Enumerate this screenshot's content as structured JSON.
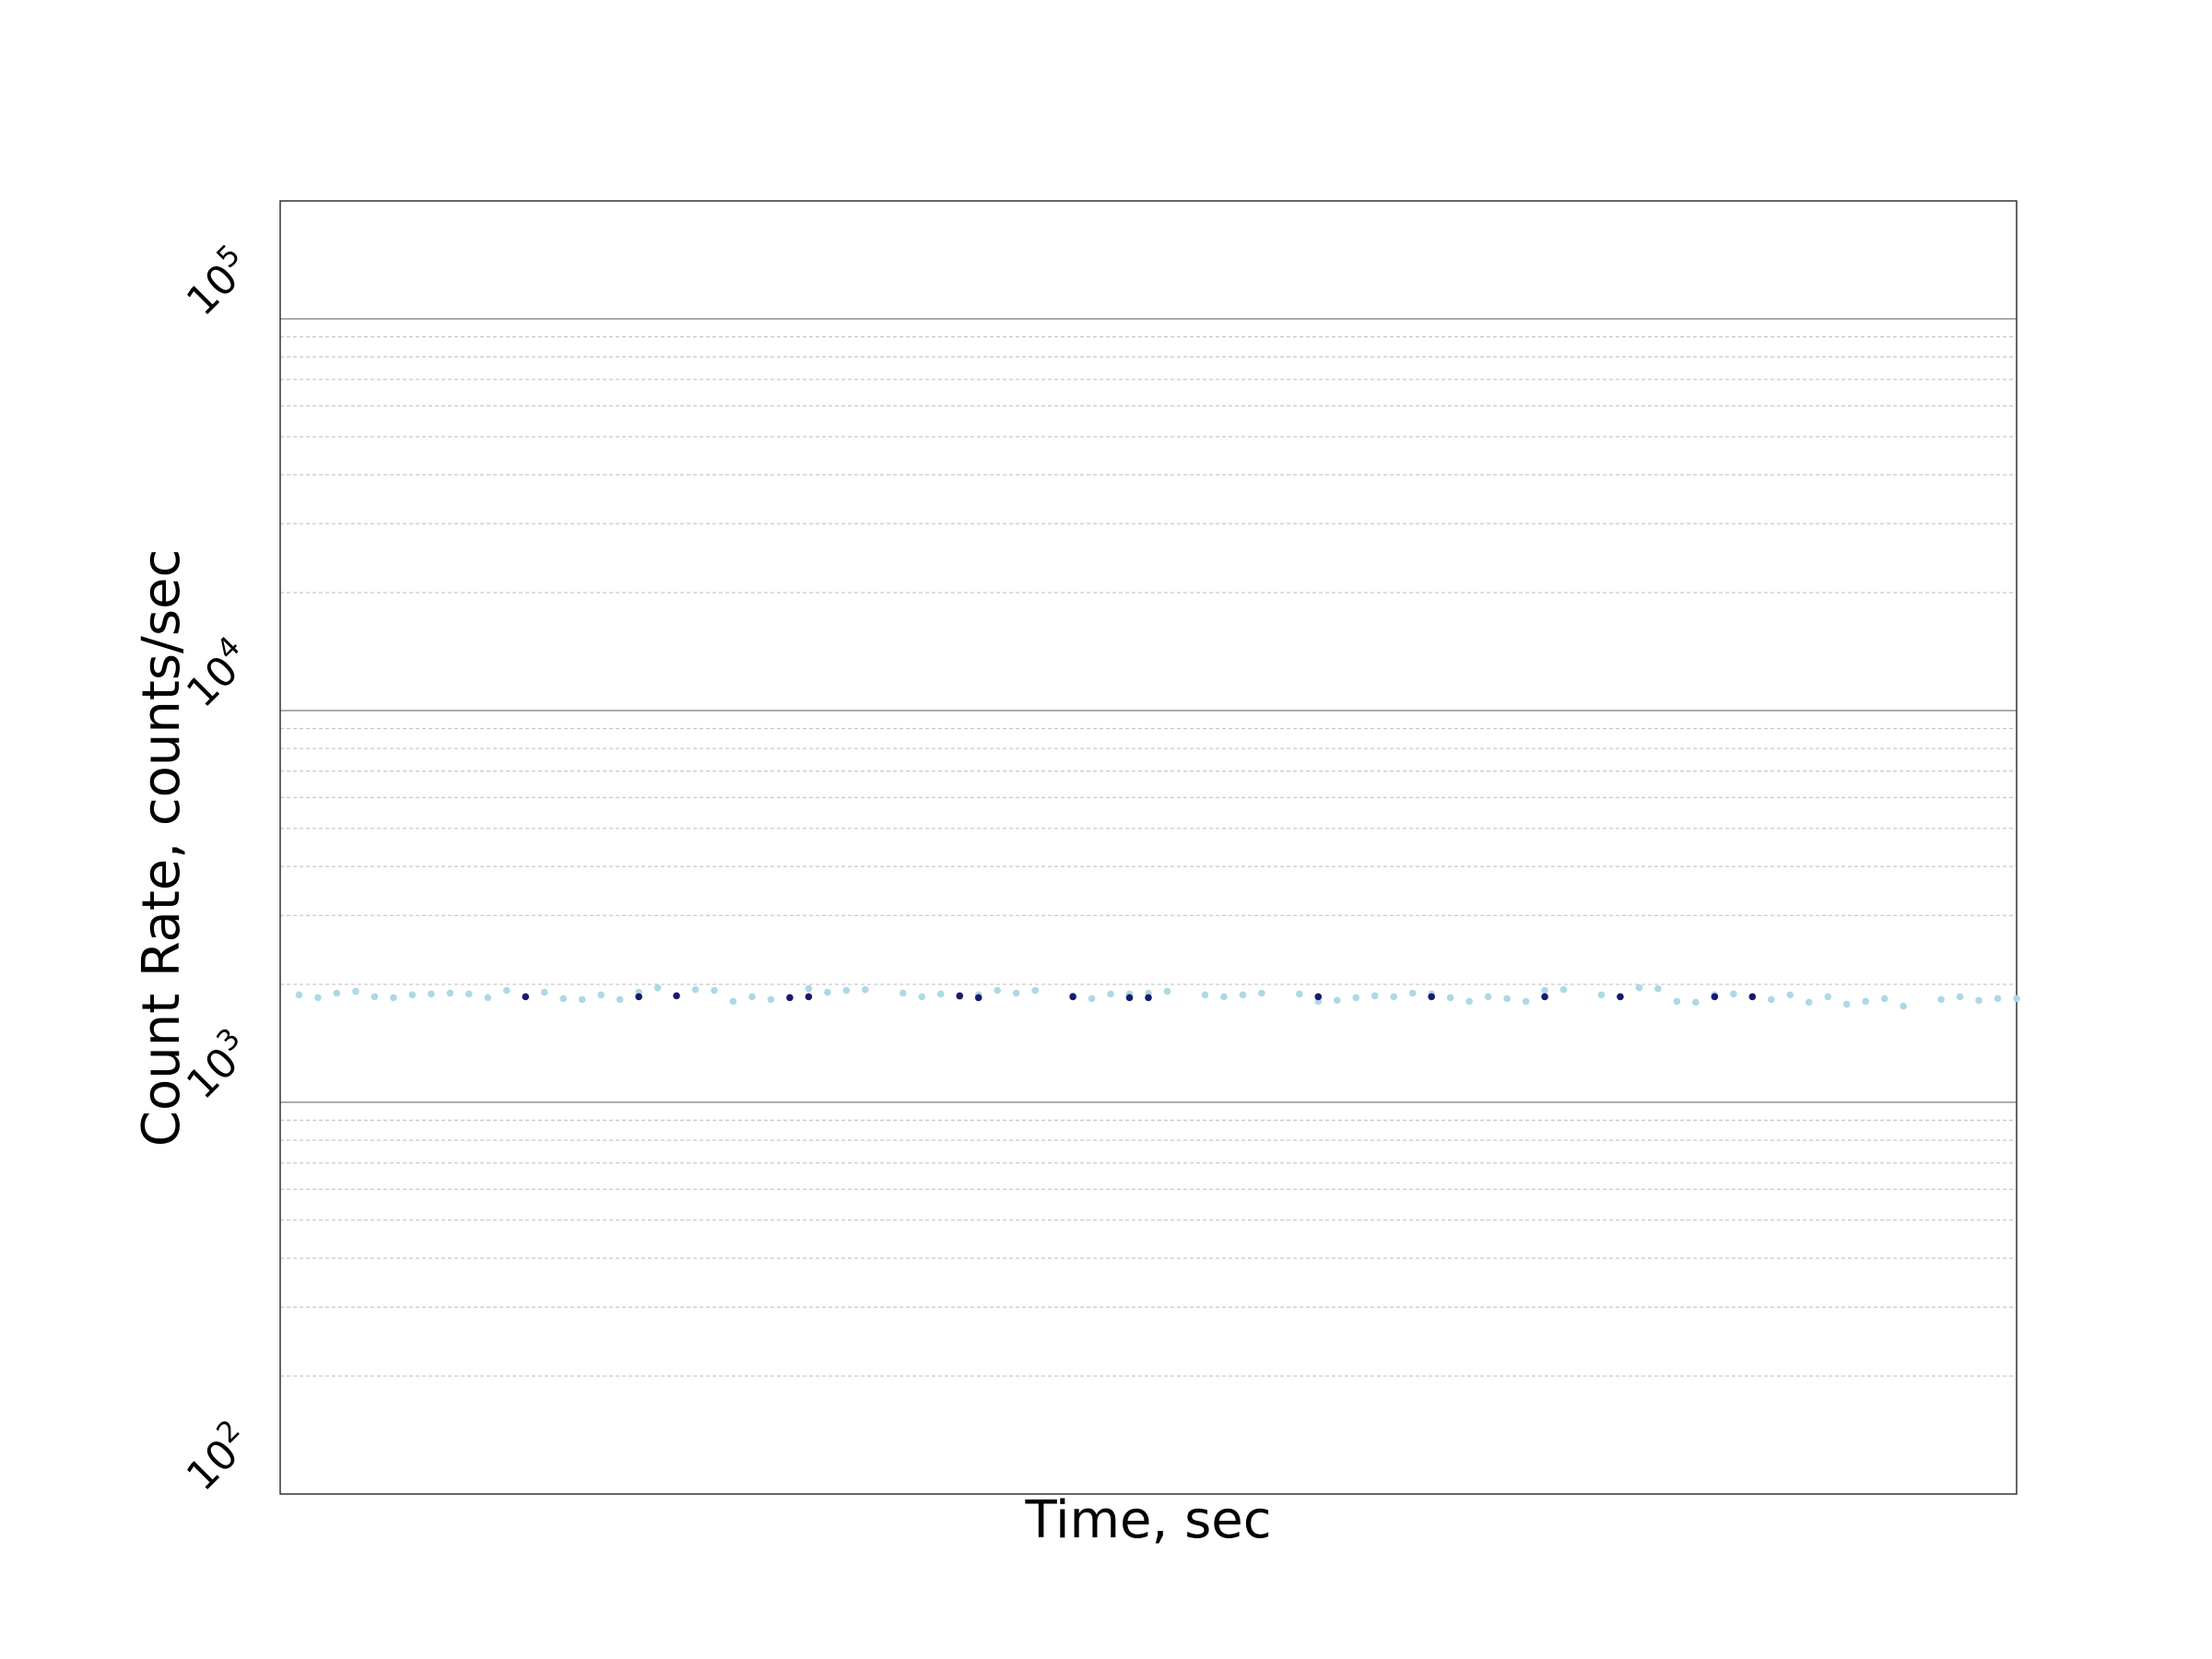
{
  "chart_data": {
    "type": "scatter",
    "title": "",
    "xlabel": "Time, sec",
    "ylabel": "Count Rate, counts/sec",
    "y_scale": "log",
    "ylim": [
      100,
      200000
    ],
    "xlim": [
      0,
      92
    ],
    "x_ticks_visible": false,
    "y_ticks": [
      {
        "base": "10",
        "exp": "2",
        "value": 100
      },
      {
        "base": "10",
        "exp": "3",
        "value": 1000
      },
      {
        "base": "10",
        "exp": "4",
        "value": 10000
      },
      {
        "base": "10",
        "exp": "5",
        "value": 100000
      }
    ],
    "grid": {
      "major": true,
      "minor": true,
      "axis": "y"
    },
    "colors": {
      "light_points": "#add8e6",
      "dark_points": "#191970",
      "major_grid": "#999999",
      "minor_grid": "#bbbbbb",
      "frame": "#333333"
    },
    "series": [
      {
        "color": "#add8e6",
        "x": [
          1,
          2,
          3,
          4,
          5,
          6,
          7,
          8,
          9,
          10,
          11,
          12,
          14,
          15,
          16,
          17,
          18,
          19,
          20,
          22,
          23,
          24,
          25,
          26,
          28,
          29,
          30,
          31,
          33,
          34,
          35,
          36,
          37,
          38,
          39,
          40,
          42,
          43,
          44,
          45,
          46,
          47,
          49,
          50,
          51,
          52,
          54,
          55,
          56,
          57,
          58,
          59,
          60,
          61,
          62,
          63,
          64,
          65,
          66,
          67,
          68,
          70,
          71,
          72,
          73,
          74,
          75,
          76,
          77,
          79,
          80,
          81,
          82,
          83,
          84,
          85,
          86,
          88,
          89,
          90,
          91,
          92
        ],
        "y": [
          1880,
          1850,
          1900,
          1920,
          1860,
          1850,
          1880,
          1890,
          1900,
          1890,
          1850,
          1930,
          1910,
          1840,
          1830,
          1880,
          1830,
          1910,
          1960,
          1940,
          1930,
          1810,
          1860,
          1830,
          1950,
          1910,
          1930,
          1940,
          1900,
          1860,
          1890,
          1860,
          1880,
          1930,
          1900,
          1930,
          1870,
          1840,
          1890,
          1890,
          1900,
          1920,
          1880,
          1860,
          1880,
          1900,
          1890,
          1810,
          1820,
          1850,
          1870,
          1860,
          1900,
          1890,
          1850,
          1810,
          1860,
          1840,
          1810,
          1930,
          1940,
          1880,
          1860,
          1960,
          1950,
          1810,
          1800,
          1880,
          1890,
          1830,
          1880,
          1800,
          1860,
          1780,
          1810,
          1840,
          1760,
          1830,
          1860,
          1820,
          1840,
          1840
        ]
      },
      {
        "color": "#191970",
        "x": [
          13,
          19,
          21,
          27,
          28,
          36,
          37,
          42,
          45,
          46,
          55,
          61,
          67,
          71,
          76,
          78
        ],
        "y": [
          1860,
          1860,
          1870,
          1850,
          1860,
          1870,
          1850,
          1860,
          1850,
          1850,
          1860,
          1860,
          1860,
          1860,
          1860,
          1860
        ]
      }
    ]
  }
}
